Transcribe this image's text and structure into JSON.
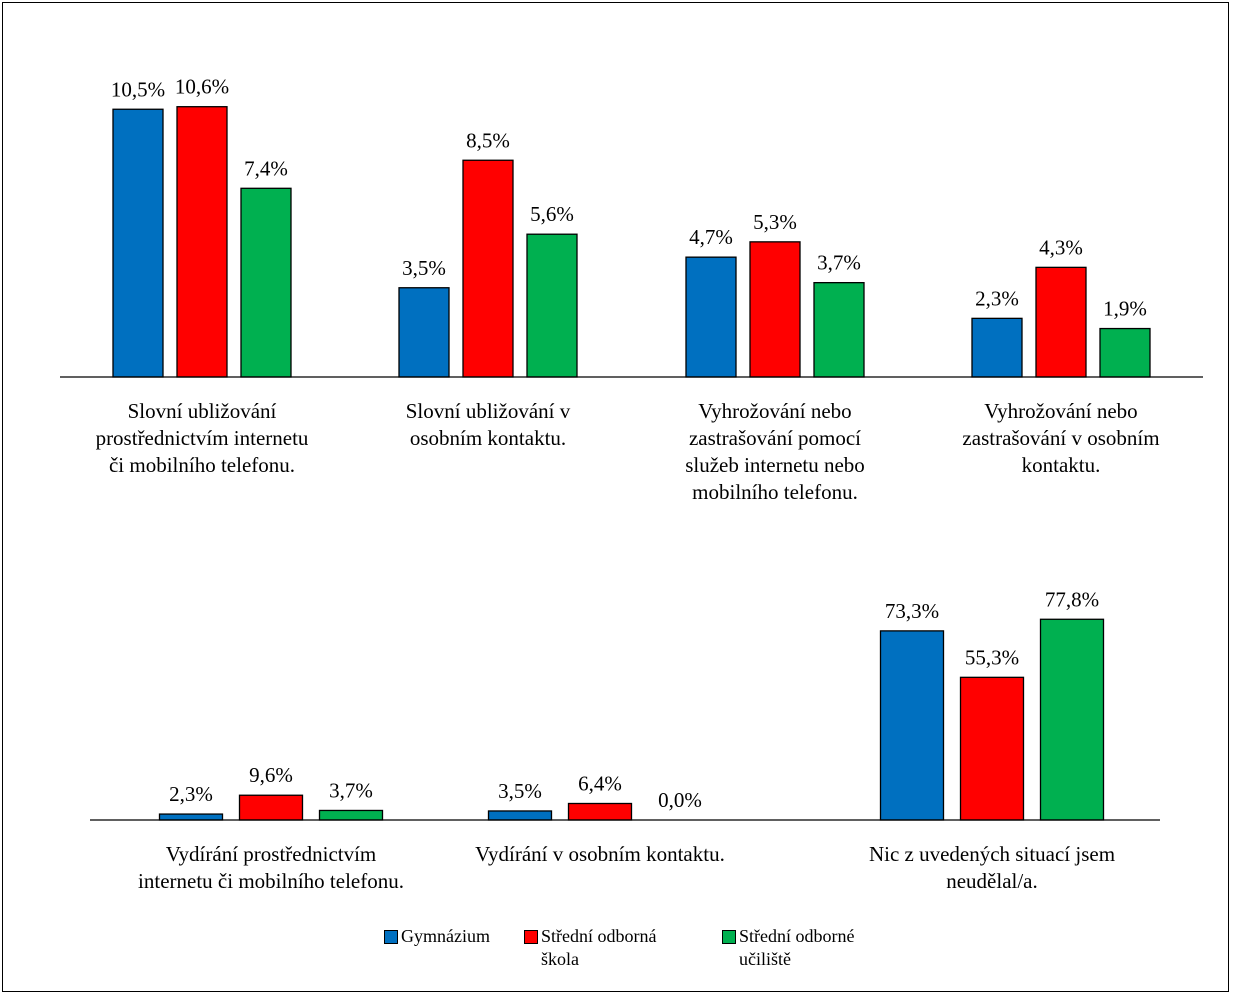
{
  "chart_data": [
    {
      "type": "bar",
      "categories": [
        "Slovní ubližování\nprostřednictvím internetu\nči mobilního telefonu.",
        "Slovní ubližování v\nosobním kontaktu.",
        "Vyhrožování nebo\nzastrašování pomocí\nslužeb internetu nebo\nmobilního telefonu.",
        "Vyhrožování nebo\nzastrašování v osobním\nkontaktu."
      ],
      "series": [
        {
          "name": "Gymnázium",
          "values": [
            10.5,
            3.5,
            4.7,
            2.3
          ],
          "labels": [
            "10,5%",
            "3,5%",
            "4,7%",
            "2,3%"
          ]
        },
        {
          "name": "Střední odborná škola",
          "values": [
            10.6,
            8.5,
            5.3,
            4.3
          ],
          "labels": [
            "10,6%",
            "8,5%",
            "5,3%",
            "4,3%"
          ]
        },
        {
          "name": "Střední odborné učiliště",
          "values": [
            7.4,
            5.6,
            3.7,
            1.9
          ],
          "labels": [
            "7,4%",
            "5,6%",
            "3,7%",
            "1,9%"
          ]
        }
      ],
      "ylim": [
        0,
        11
      ]
    },
    {
      "type": "bar",
      "categories": [
        "Vydírání prostřednictvím\ninternetu či mobilního telefonu.",
        "Vydírání  v osobním kontaktu.",
        "Nic z uvedených situací jsem\nneudělal/a."
      ],
      "series": [
        {
          "name": "Gymnázium",
          "values": [
            2.3,
            3.5,
            73.3
          ],
          "labels": [
            "2,3%",
            "3,5%",
            "73,3%"
          ]
        },
        {
          "name": "Střední odborná škola",
          "values": [
            9.6,
            6.4,
            55.3
          ],
          "labels": [
            "9,6%",
            "6,4%",
            "55,3%"
          ]
        },
        {
          "name": "Střední odborné učiliště",
          "values": [
            3.7,
            0.0,
            77.8
          ],
          "labels": [
            "3,7%",
            "0,0%",
            "77,8%"
          ]
        }
      ],
      "ylim": [
        0,
        80
      ]
    }
  ],
  "legend": {
    "items": [
      {
        "label": "Gymnázium",
        "color": "#0070c0"
      },
      {
        "label": "Střední odborná\nškola",
        "color": "#ff0000"
      },
      {
        "label": "Střední odborné\nučiliště",
        "color": "#00b050"
      }
    ]
  },
  "colors": [
    "#0070c0",
    "#ff0000",
    "#00b050"
  ]
}
